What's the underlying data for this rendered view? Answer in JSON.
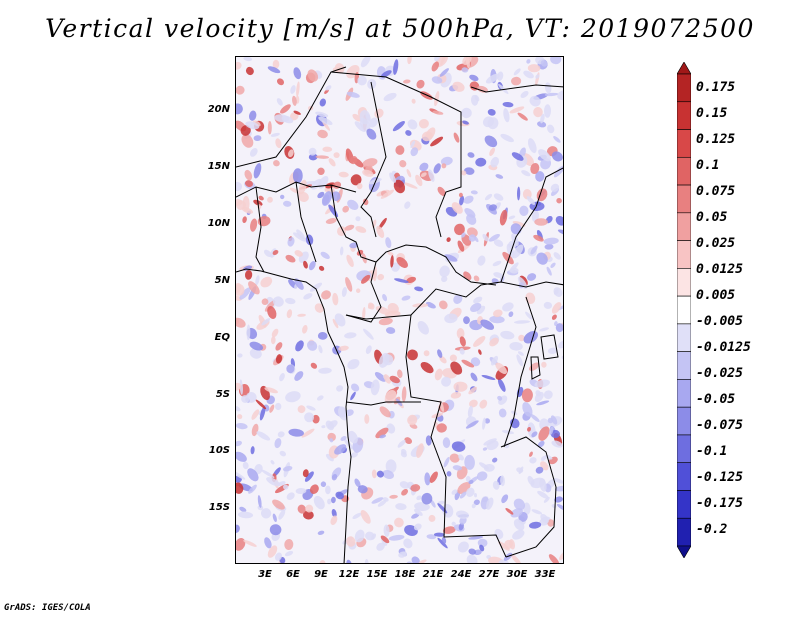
{
  "title": "Vertical velocity [m/s] at 500hPa, VT: 2019072500",
  "credit": "GrADS: IGES/COLA",
  "map": {
    "lat_labels": [
      "20N",
      "15N",
      "10N",
      "5N",
      "EQ",
      "5S",
      "10S",
      "15S"
    ],
    "lon_labels": [
      "3E",
      "6E",
      "9E",
      "12E",
      "15E",
      "18E",
      "21E",
      "24E",
      "27E",
      "30E",
      "33E"
    ]
  },
  "colorbar": {
    "labels": [
      "0.175",
      "0.15",
      "0.125",
      "0.1",
      "0.075",
      "0.05",
      "0.025",
      "0.0125",
      "0.005",
      "-0.005",
      "-0.0125",
      "-0.025",
      "-0.05",
      "-0.075",
      "-0.1",
      "-0.125",
      "-0.175",
      "-0.2"
    ],
    "colors": [
      "#a01818",
      "#b42424",
      "#c83232",
      "#d84848",
      "#e06464",
      "#e88080",
      "#f0a0a0",
      "#f8c4c4",
      "#fce4e4",
      "#ffffff",
      "#e0e0f8",
      "#c4c4f4",
      "#a8a8f0",
      "#8c8ce8",
      "#6e6ee0",
      "#5050d8",
      "#3434c8",
      "#2020b0",
      "#10108c"
    ]
  }
}
